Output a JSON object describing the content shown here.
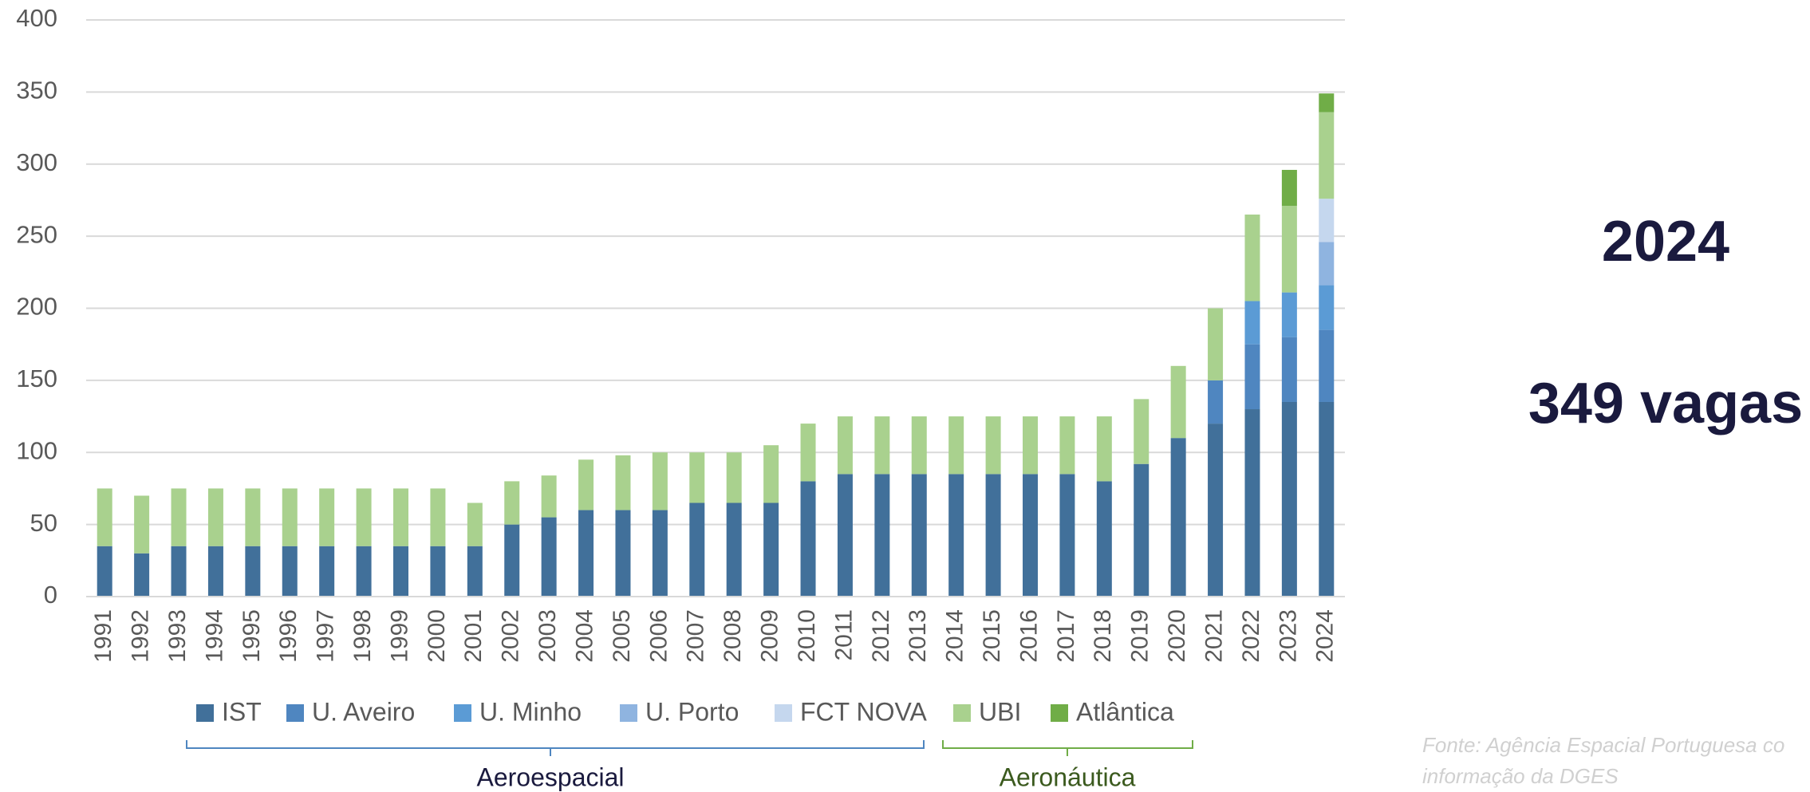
{
  "chart_data": {
    "type": "bar",
    "stacked": true,
    "categories": [
      "1991",
      "1992",
      "1993",
      "1994",
      "1995",
      "1996",
      "1997",
      "1998",
      "1999",
      "2000",
      "2001",
      "2002",
      "2003",
      "2004",
      "2005",
      "2006",
      "2007",
      "2008",
      "2009",
      "2010",
      "2011",
      "2012",
      "2013",
      "2014",
      "2015",
      "2016",
      "2017",
      "2018",
      "2019",
      "2020",
      "2021",
      "2022",
      "2023",
      "2024"
    ],
    "series": [
      {
        "name": "IST",
        "color": "#41709a",
        "values": [
          35,
          30,
          35,
          35,
          35,
          35,
          35,
          35,
          35,
          35,
          35,
          50,
          55,
          60,
          60,
          60,
          65,
          65,
          65,
          80,
          85,
          85,
          85,
          85,
          85,
          85,
          85,
          80,
          92,
          110,
          120,
          130,
          135,
          135
        ]
      },
      {
        "name": "U. Aveiro",
        "color": "#4f86c0",
        "values": [
          0,
          0,
          0,
          0,
          0,
          0,
          0,
          0,
          0,
          0,
          0,
          0,
          0,
          0,
          0,
          0,
          0,
          0,
          0,
          0,
          0,
          0,
          0,
          0,
          0,
          0,
          0,
          0,
          0,
          0,
          30,
          45,
          45,
          50
        ]
      },
      {
        "name": "U. Minho",
        "color": "#5b9bd5",
        "values": [
          0,
          0,
          0,
          0,
          0,
          0,
          0,
          0,
          0,
          0,
          0,
          0,
          0,
          0,
          0,
          0,
          0,
          0,
          0,
          0,
          0,
          0,
          0,
          0,
          0,
          0,
          0,
          0,
          0,
          0,
          0,
          30,
          31,
          31
        ]
      },
      {
        "name": "U. Porto",
        "color": "#8fb4e0",
        "values": [
          0,
          0,
          0,
          0,
          0,
          0,
          0,
          0,
          0,
          0,
          0,
          0,
          0,
          0,
          0,
          0,
          0,
          0,
          0,
          0,
          0,
          0,
          0,
          0,
          0,
          0,
          0,
          0,
          0,
          0,
          0,
          0,
          0,
          30
        ]
      },
      {
        "name": "FCT NOVA",
        "color": "#c5d7ee",
        "values": [
          0,
          0,
          0,
          0,
          0,
          0,
          0,
          0,
          0,
          0,
          0,
          0,
          0,
          0,
          0,
          0,
          0,
          0,
          0,
          0,
          0,
          0,
          0,
          0,
          0,
          0,
          0,
          0,
          0,
          0,
          0,
          0,
          0,
          30
        ]
      },
      {
        "name": "UBI",
        "color": "#a9d18e",
        "values": [
          40,
          40,
          40,
          40,
          40,
          40,
          40,
          40,
          40,
          40,
          30,
          30,
          29,
          35,
          38,
          40,
          35,
          35,
          40,
          40,
          40,
          40,
          40,
          40,
          40,
          40,
          40,
          45,
          45,
          50,
          50,
          60,
          60,
          60
        ]
      },
      {
        "name": "Atlântica",
        "color": "#70ad47",
        "values": [
          0,
          0,
          0,
          0,
          0,
          0,
          0,
          0,
          0,
          0,
          0,
          0,
          0,
          0,
          0,
          0,
          0,
          0,
          0,
          0,
          0,
          0,
          0,
          0,
          0,
          0,
          0,
          0,
          0,
          0,
          0,
          0,
          25,
          13
        ]
      }
    ],
    "ylim": [
      0,
      400
    ],
    "yticks": [
      0,
      50,
      100,
      150,
      200,
      250,
      300,
      350,
      400
    ],
    "grid": true,
    "legend": "bottom",
    "annotations": {
      "group1": "Aeroespacial",
      "group2": "Aeronáutica",
      "highlight_year": "2024",
      "highlight_text": "349 vagas",
      "source_line1": "Fonte: Agência Espacial Portuguesa co",
      "source_line2": "informação da DGES"
    }
  }
}
